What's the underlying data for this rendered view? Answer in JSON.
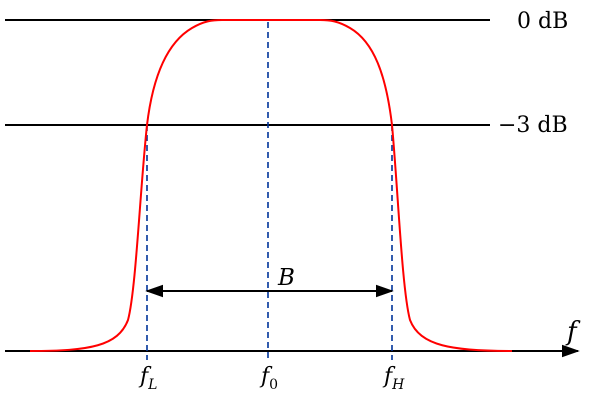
{
  "levels": {
    "top_label": "0 dB",
    "mid_label": "−3 dB"
  },
  "axis": {
    "label": "f"
  },
  "ticks": {
    "low": {
      "base": "f",
      "sub": "L"
    },
    "center": {
      "base": "f",
      "sub": "0"
    },
    "high": {
      "base": "f",
      "sub": "H"
    }
  },
  "bandwidth": {
    "label": "B"
  },
  "colors": {
    "curve": "#ff0000",
    "guides": "#003399",
    "lines": "#000000"
  }
}
